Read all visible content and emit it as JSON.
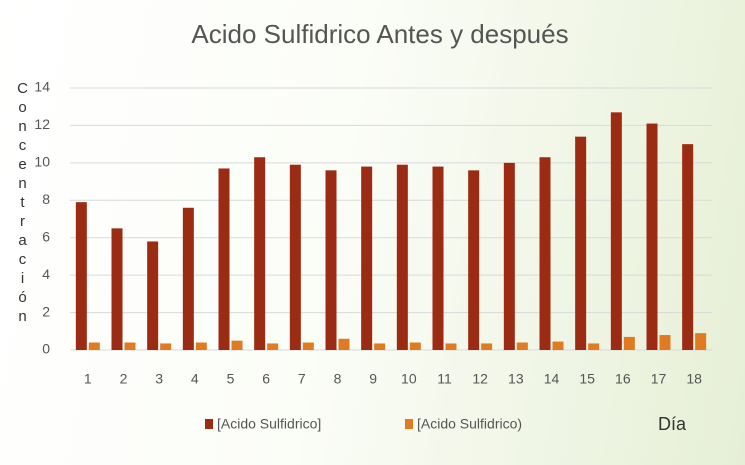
{
  "chart_data": {
    "type": "bar",
    "title": "Acido Sulfidrico Antes y después",
    "x_label": "Día",
    "y_label": "Concentración",
    "categories": [
      "1",
      "2",
      "3",
      "4",
      "5",
      "6",
      "7",
      "8",
      "9",
      "10",
      "11",
      "12",
      "13",
      "14",
      "15",
      "16",
      "17",
      "18"
    ],
    "series": [
      {
        "name": "[Acido Sulfidrico]",
        "color": "#9b2b12",
        "values": [
          7.9,
          6.5,
          5.8,
          7.6,
          9.7,
          10.3,
          9.9,
          9.6,
          9.8,
          9.9,
          9.8,
          9.6,
          10.0,
          10.3,
          11.4,
          12.7,
          12.1,
          11.0
        ]
      },
      {
        "name": "[Acido Sulfidrico)",
        "color": "#e07b22",
        "values": [
          0.4,
          0.4,
          0.35,
          0.4,
          0.5,
          0.35,
          0.4,
          0.6,
          0.35,
          0.4,
          0.35,
          0.35,
          0.4,
          0.45,
          0.35,
          0.7,
          0.8,
          0.9
        ]
      }
    ],
    "ylim": [
      0,
      14
    ],
    "yticks": [
      0,
      2,
      4,
      6,
      8,
      10,
      12,
      14
    ],
    "grid": true
  }
}
